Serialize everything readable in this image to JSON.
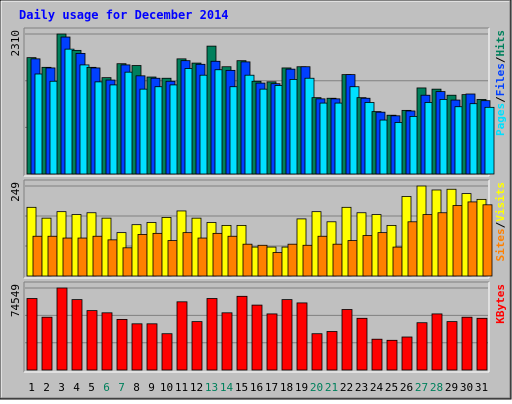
{
  "chart_data": {
    "type": "bar",
    "title": "Daily usage for December 2014",
    "categories": [
      "1",
      "2",
      "3",
      "4",
      "5",
      "6",
      "7",
      "8",
      "9",
      "10",
      "11",
      "12",
      "13",
      "14",
      "15",
      "16",
      "17",
      "18",
      "19",
      "20",
      "21",
      "22",
      "23",
      "24",
      "25",
      "26",
      "27",
      "28",
      "29",
      "30",
      "31"
    ],
    "weekend_days": [
      "6",
      "7",
      "13",
      "14",
      "20",
      "21",
      "27",
      "28"
    ],
    "colors": {
      "hits": "#00805c",
      "files": "#0040ff",
      "pages": "#00e0ff",
      "visits": "#ffff00",
      "sites": "#ff8000",
      "kbytes": "#ff0000",
      "title": "#0000ff",
      "weekday_label": "#000000",
      "weekend_label": "#00805c",
      "plot_bg": "#c0c0c0",
      "frame_bg": "#c0c0c0"
    },
    "panels": [
      {
        "id": "hits_panel",
        "max_label": "2310",
        "ymax": 2310,
        "legend": [
          {
            "text": "Pages",
            "color": "#00e0ff"
          },
          {
            "text": "Files",
            "color": "#0040ff"
          },
          {
            "text": "Hits",
            "color": "#00805c"
          }
        ],
        "series": [
          {
            "name": "Hits",
            "values": [
              1920,
              1760,
              2310,
              2040,
              1760,
              1590,
              1820,
              1790,
              1600,
              1580,
              1900,
              1830,
              2110,
              1770,
              1870,
              1530,
              1520,
              1750,
              1770,
              1260,
              1250,
              1640,
              1260,
              1030,
              970,
              1050,
              1420,
              1400,
              1300,
              1310,
              1230
            ]
          },
          {
            "name": "Files",
            "values": [
              1900,
              1750,
              2260,
              1990,
              1750,
              1550,
              1800,
              1620,
              1580,
              1530,
              1870,
              1810,
              1860,
              1710,
              1850,
              1500,
              1490,
              1730,
              1770,
              1240,
              1240,
              1640,
              1250,
              1020,
              960,
              1040,
              1300,
              1360,
              1220,
              1320,
              1210
            ]
          },
          {
            "name": "Pages",
            "values": [
              1650,
              1530,
              2060,
              1800,
              1520,
              1470,
              1680,
              1400,
              1440,
              1470,
              1740,
              1630,
              1720,
              1440,
              1630,
              1400,
              1460,
              1560,
              1580,
              1170,
              1170,
              1440,
              1180,
              890,
              850,
              950,
              1180,
              1230,
              1110,
              1160,
              1100
            ]
          }
        ]
      },
      {
        "id": "visits_panel",
        "max_label": "249",
        "ymax": 249,
        "legend": [
          {
            "text": "Sites",
            "color": "#ff8000"
          },
          {
            "text": "Visits",
            "color": "#ffff00"
          }
        ],
        "series": [
          {
            "name": "Visits",
            "values": [
              190,
              160,
              178,
              170,
              175,
              160,
              120,
              142,
              148,
              162,
              180,
              160,
              148,
              140,
              140,
              80,
              80,
              80,
              158,
              178,
              150,
              190,
              175,
              170,
              140,
              220,
              249,
              238,
              240,
              228,
              212
            ]
          },
          {
            "name": "Sites",
            "values": [
              110,
              110,
              105,
              105,
              110,
              100,
              78,
              115,
              118,
              98,
              120,
              105,
              118,
              110,
              88,
              85,
              65,
              88,
              85,
              110,
              88,
              98,
              112,
              120,
              80,
              150,
              170,
              175,
              195,
              205,
              197
            ]
          }
        ]
      },
      {
        "id": "kbytes_panel",
        "max_label": "74549",
        "ymax": 74549,
        "legend": [
          {
            "text": "KBytes",
            "color": "#ff0000"
          }
        ],
        "series": [
          {
            "name": "KBytes",
            "values": [
              65000,
              48000,
              74549,
              64000,
              54000,
              52000,
              46000,
              42000,
              42000,
              33000,
              62000,
              44000,
              65000,
              52000,
              67000,
              59000,
              51000,
              64000,
              61000,
              33000,
              35000,
              55000,
              47000,
              28000,
              27000,
              30000,
              43000,
              51000,
              44000,
              48000,
              47000
            ]
          }
        ]
      }
    ]
  }
}
